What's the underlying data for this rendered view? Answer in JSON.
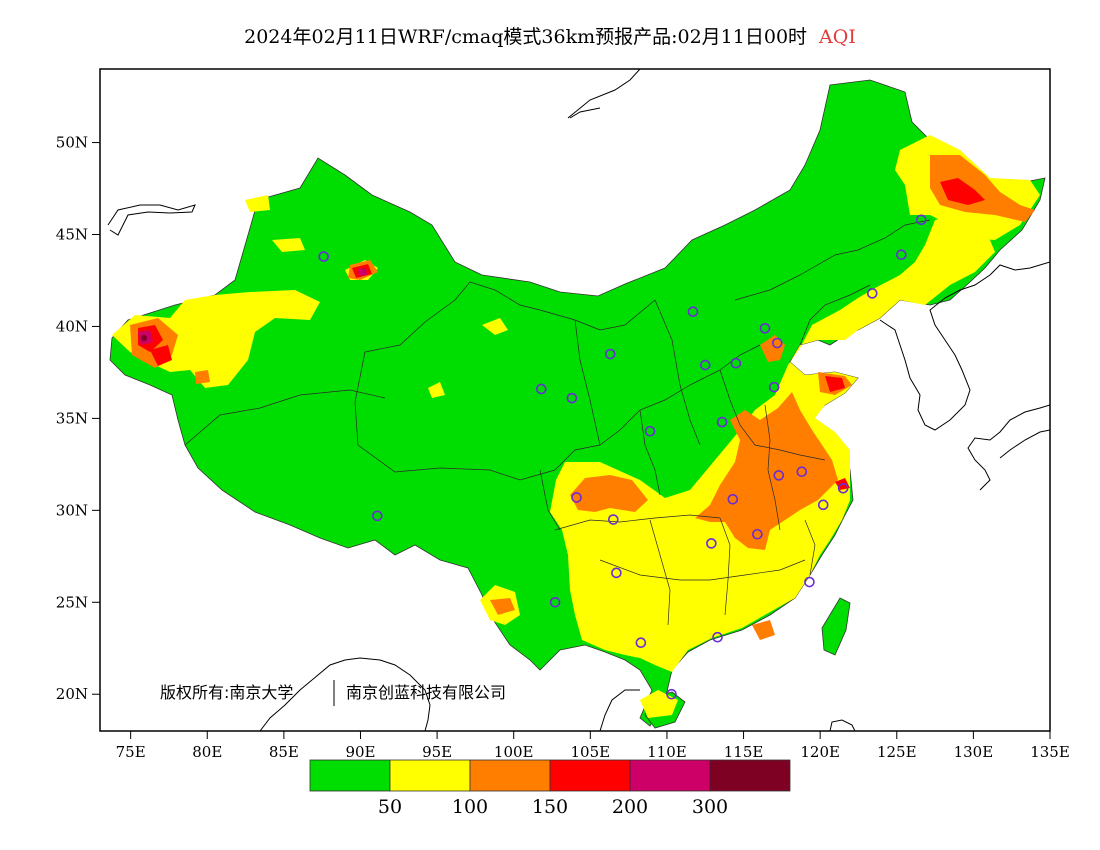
{
  "title": {
    "main": "2024年02月11日WRF/cmaq模式36km预报产品:02月11日00时",
    "variable": "AQI"
  },
  "axes": {
    "lat_labels": [
      "50N",
      "45N",
      "40N",
      "35N",
      "30N",
      "25N",
      "20N"
    ],
    "lat_values": [
      50,
      45,
      40,
      35,
      30,
      25,
      20
    ],
    "lon_labels": [
      "75E",
      "80E",
      "85E",
      "90E",
      "95E",
      "100E",
      "105E",
      "110E",
      "115E",
      "120E",
      "125E",
      "130E",
      "135E"
    ],
    "lon_values": [
      75,
      80,
      85,
      90,
      95,
      100,
      105,
      110,
      115,
      120,
      125,
      130,
      135
    ],
    "lon_range": [
      73,
      135
    ],
    "lat_range": [
      18,
      54
    ]
  },
  "copyright": {
    "prefix": "版权所有:南京大学",
    "suffix": "南京创蓝科技有限公司"
  },
  "legend": {
    "colors": [
      "#00dd00",
      "#ffff00",
      "#ff7e00",
      "#ff0000",
      "#cc0066",
      "#7e0023"
    ],
    "thresholds": [
      "50",
      "100",
      "150",
      "200",
      "300"
    ]
  },
  "stations": [
    {
      "lon": 87.6,
      "lat": 43.8
    },
    {
      "lon": 91.1,
      "lat": 29.7
    },
    {
      "lon": 101.8,
      "lat": 36.6
    },
    {
      "lon": 103.8,
      "lat": 36.1
    },
    {
      "lon": 106.3,
      "lat": 38.5
    },
    {
      "lon": 111.7,
      "lat": 40.8
    },
    {
      "lon": 112.5,
      "lat": 37.9
    },
    {
      "lon": 114.5,
      "lat": 38.0
    },
    {
      "lon": 116.4,
      "lat": 39.9
    },
    {
      "lon": 117.2,
      "lat": 39.1
    },
    {
      "lon": 117.0,
      "lat": 36.7
    },
    {
      "lon": 113.6,
      "lat": 34.8
    },
    {
      "lon": 108.9,
      "lat": 34.3
    },
    {
      "lon": 104.1,
      "lat": 30.7
    },
    {
      "lon": 106.5,
      "lat": 29.5
    },
    {
      "lon": 106.7,
      "lat": 26.6
    },
    {
      "lon": 102.7,
      "lat": 25.0
    },
    {
      "lon": 108.3,
      "lat": 22.8
    },
    {
      "lon": 113.3,
      "lat": 23.1
    },
    {
      "lon": 110.3,
      "lat": 20.0
    },
    {
      "lon": 112.9,
      "lat": 28.2
    },
    {
      "lon": 114.3,
      "lat": 30.6
    },
    {
      "lon": 115.9,
      "lat": 28.7
    },
    {
      "lon": 117.3,
      "lat": 31.9
    },
    {
      "lon": 118.8,
      "lat": 32.1
    },
    {
      "lon": 120.2,
      "lat": 30.3
    },
    {
      "lon": 121.5,
      "lat": 31.2
    },
    {
      "lon": 119.3,
      "lat": 26.1
    },
    {
      "lon": 123.4,
      "lat": 41.8
    },
    {
      "lon": 125.3,
      "lat": 43.9
    },
    {
      "lon": 126.6,
      "lat": 45.8
    }
  ]
}
